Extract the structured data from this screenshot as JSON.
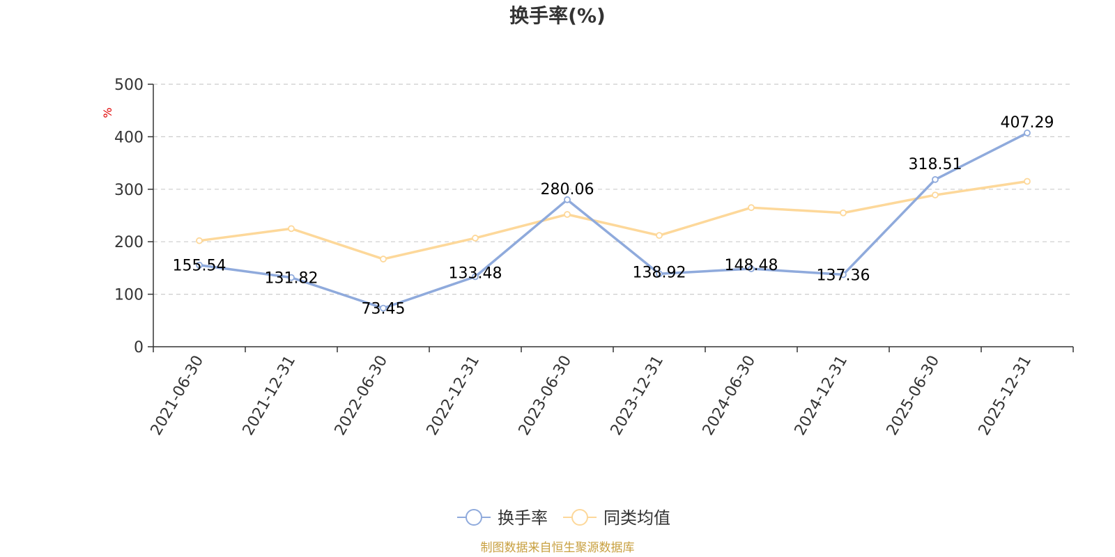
{
  "chart_data": {
    "type": "line",
    "title": "换手率(%)",
    "ylabel": "%",
    "xlabel": "",
    "ylim": [
      0,
      500
    ],
    "yticks": [
      0,
      100,
      200,
      300,
      400,
      500
    ],
    "grid": true,
    "categories": [
      "2021-06-30",
      "2021-12-31",
      "2022-06-30",
      "2022-12-31",
      "2023-06-30",
      "2023-12-31",
      "2024-06-30",
      "2024-12-31",
      "2025-06-30",
      "2025-12-31"
    ],
    "series": [
      {
        "name": "换手率",
        "color": "#8faadc",
        "values": [
          155.54,
          131.82,
          73.45,
          133.48,
          280.06,
          138.92,
          148.48,
          137.36,
          318.51,
          407.29
        ],
        "labels": [
          "155.54",
          "131.82",
          "73.45",
          "133.48",
          "280.06",
          "138.92",
          "148.48",
          "137.36",
          "318.51",
          "407.29"
        ]
      },
      {
        "name": "同类均值",
        "color": "#fdd89a",
        "values": [
          202,
          225,
          167,
          207,
          252,
          212,
          265,
          255,
          289,
          315
        ]
      }
    ],
    "legend_position": "bottom-center"
  },
  "footer": {
    "source": "制图数据来自恒生聚源数据库"
  }
}
